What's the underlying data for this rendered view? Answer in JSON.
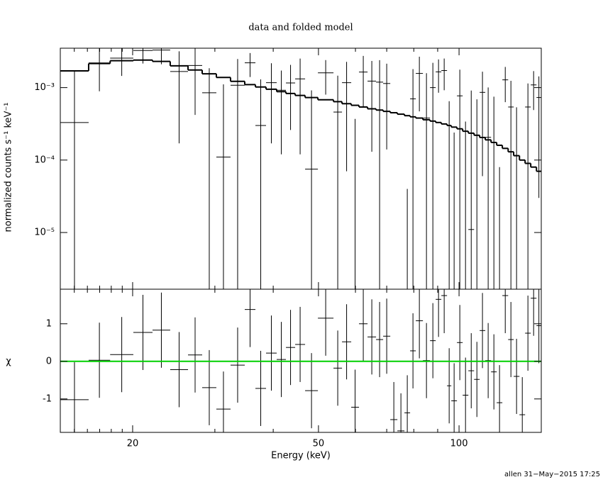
{
  "chart_data": {
    "type": "spectrum",
    "title": "data and folded model",
    "xlabel": "Energy (keV)",
    "ylabel": "normalized counts s⁻¹ keV⁻¹",
    "residual_ylabel": "χ",
    "log_x": true,
    "log_y": true,
    "xlim": [
      14,
      150
    ],
    "xticks": [
      20,
      50,
      100
    ],
    "xminor_ticks": [
      15,
      16,
      17,
      18,
      19,
      30,
      40,
      60,
      70,
      80,
      90
    ],
    "ylim": [
      1.65e-06,
      0.0035
    ],
    "yticks": [
      {
        "value": 0.001,
        "label": "10⁻³"
      },
      {
        "value": 0.0001,
        "label": "10⁻⁴"
      },
      {
        "value": 1e-05,
        "label": "10⁻⁵"
      }
    ],
    "residual_ylim": [
      -1.89,
      1.92
    ],
    "residual_yticks": [
      -1,
      0,
      1
    ],
    "data_color": "#000000",
    "model_color": "#000000",
    "zero_line": {
      "value": 0,
      "color": "#00d000"
    },
    "bins": [
      14.0,
      16.1,
      17.9,
      20.07,
      22.06,
      24.07,
      26.28,
      28.18,
      30.22,
      32.41,
      34.76,
      36.64,
      38.61,
      40.69,
      42.59,
      44.57,
      46.81,
      49.86,
      53.84,
      56.15,
      58.76,
      61.06,
      63.69,
      66.42,
      68.78,
      71.24,
      73.78,
      76.4,
      78.56,
      80.8,
      83.68,
      86.66,
      89.13,
      91.64,
      94.25,
      96.25,
      98.97,
      101.8,
      104.7,
      107.7,
      110.7,
      113.8,
      117.1,
      120.4,
      123.8,
      127.4,
      130.9,
      134.7,
      138.5,
      142.4,
      146.5,
      150
    ],
    "flux": [
      0.00033,
      0.00219,
      0.00255,
      0.00325,
      0.0033,
      0.00167,
      0.00202,
      0.00085,
      0.00011,
      0.00108,
      0.0022,
      0.0003,
      0.00117,
      0.00092,
      0.00116,
      0.00132,
      7.5e-05,
      0.0016,
      0.00046,
      0.00117,
      -0.00053,
      0.00164,
      0.00123,
      0.00119,
      0.00114,
      -0.00095,
      -0.00124,
      -0.00096,
      0.0007,
      0.00157,
      0.00038,
      0.001,
      0.00165,
      0.00172,
      -0.00035,
      -0.00076,
      0.00077,
      -0.00056,
      1.1e-05,
      -0.00021,
      0.00086,
      0.000206,
      -4.9e-05,
      -0.00072,
      0.00128,
      0.00054,
      -0.000165,
      -0.00075,
      0.00054,
      0.00109,
      0.00073
    ],
    "flux_err": [
      0.00135,
      0.0013,
      0.0011,
      0.0011,
      0.0012,
      0.0015,
      0.0016,
      0.001,
      0.001,
      0.0014,
      0.0008,
      0.001,
      0.001,
      0.0008,
      0.0009,
      0.0012,
      0.00084,
      0.0008,
      0.001,
      0.0011,
      0.0009,
      0.0011,
      0.0011,
      0.0012,
      0.001,
      0.0009,
      0.0009,
      0.001,
      0.0011,
      0.0011,
      0.0012,
      0.0012,
      0.0008,
      0.0008,
      0.001,
      0.001,
      0.001,
      0.0009,
      0.0009,
      0.0009,
      0.0008,
      0.0008,
      0.0008,
      0.0008,
      0.00065,
      0.0007,
      0.0007,
      0.0006,
      0.0006,
      0.0006,
      0.0007
    ],
    "model": [
      0.0017,
      0.00215,
      0.00235,
      0.0024,
      0.0023,
      0.002,
      0.00175,
      0.00155,
      0.00138,
      0.00122,
      0.0011,
      0.00102,
      0.00095,
      0.00088,
      0.00083,
      0.00078,
      0.00073,
      0.00068,
      0.00064,
      0.0006,
      0.00057,
      0.00054,
      0.00051,
      0.00049,
      0.00047,
      0.00045,
      0.00043,
      0.00041,
      0.000395,
      0.00038,
      0.00036,
      0.000345,
      0.00033,
      0.000315,
      0.0003,
      0.000285,
      0.00027,
      0.00025,
      0.000235,
      0.00022,
      0.000205,
      0.00019,
      0.000175,
      0.00016,
      0.000145,
      0.00013,
      0.000115,
      0.0001,
      9e-05,
      8e-05,
      7e-05
    ],
    "chi": [
      -1.02,
      0.03,
      0.18,
      0.77,
      0.83,
      -0.22,
      0.17,
      -0.7,
      -1.27,
      -0.1,
      1.38,
      -0.72,
      0.22,
      0.05,
      0.37,
      0.45,
      -0.78,
      1.15,
      -0.18,
      0.52,
      -1.22,
      1.0,
      0.65,
      0.58,
      0.67,
      -1.55,
      -1.85,
      -1.37,
      0.28,
      1.08,
      0.02,
      0.55,
      1.65,
      1.75,
      -0.65,
      -1.05,
      0.5,
      -0.9,
      -0.25,
      -0.48,
      0.82,
      0.02,
      -0.28,
      -1.1,
      1.75,
      0.58,
      -0.4,
      -1.42,
      0.75,
      1.68,
      0.95
    ],
    "chi_error": 1
  },
  "footer": "allen 31−May−2015 17:25"
}
